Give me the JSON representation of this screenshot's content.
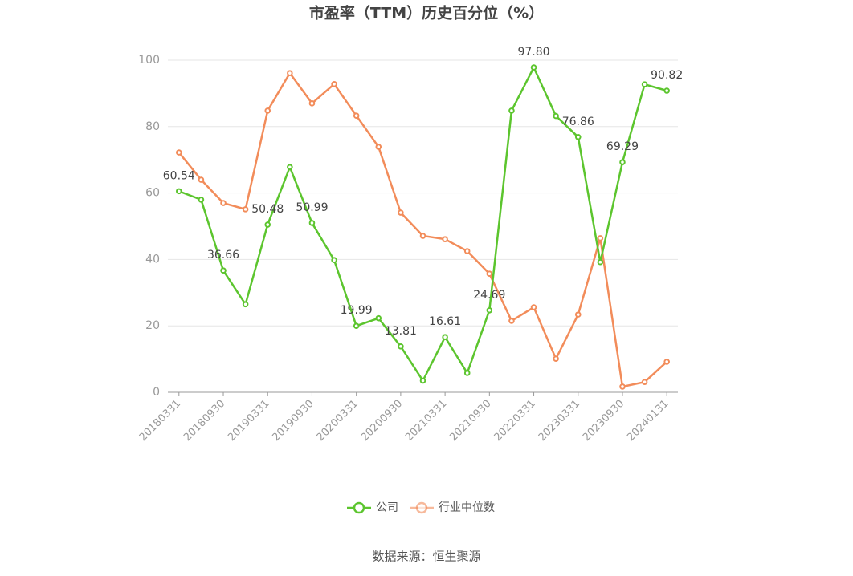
{
  "chart_data": {
    "type": "line",
    "title": "市盈率（TTM）历史百分位（%）",
    "categories": [
      "20180331",
      null,
      "20180930",
      null,
      "20190331",
      null,
      "20190930",
      null,
      "20200331",
      null,
      "20200930",
      null,
      "20210331",
      null,
      "20210930",
      null,
      "20220331",
      null,
      "20230331",
      null,
      "20230930",
      null,
      "20240131"
    ],
    "series": [
      {
        "name": "公司",
        "color": "#5cc52e",
        "values": [
          60.54,
          58.0,
          36.66,
          26.5,
          50.48,
          67.8,
          50.99,
          39.8,
          19.99,
          22.3,
          13.81,
          3.5,
          16.61,
          5.8,
          24.69,
          84.8,
          97.8,
          83.2,
          76.86,
          39.2,
          69.29,
          92.7,
          90.82
        ],
        "value_labels": [
          "60.54",
          null,
          "36.66",
          null,
          "50.48",
          null,
          "50.99",
          null,
          "19.99",
          null,
          "13.81",
          null,
          "16.61",
          null,
          "24.69",
          null,
          "97.80",
          null,
          "76.86",
          null,
          "69.29",
          null,
          "90.82"
        ]
      },
      {
        "name": "行业中位数",
        "color": "#f28c5a",
        "values": [
          72.2,
          64.0,
          57.0,
          55.1,
          84.8,
          96.1,
          87.0,
          92.8,
          83.3,
          73.9,
          54.1,
          47.1,
          46.1,
          42.5,
          35.7,
          21.5,
          25.6,
          10.1,
          23.4,
          46.4,
          1.7,
          3.1,
          9.2
        ]
      }
    ],
    "ylim": [
      0,
      100
    ],
    "yticks": [
      0,
      20,
      40,
      60,
      80,
      100
    ],
    "grid": true,
    "legend": "bottom",
    "source": "数据来源：恒生聚源"
  }
}
